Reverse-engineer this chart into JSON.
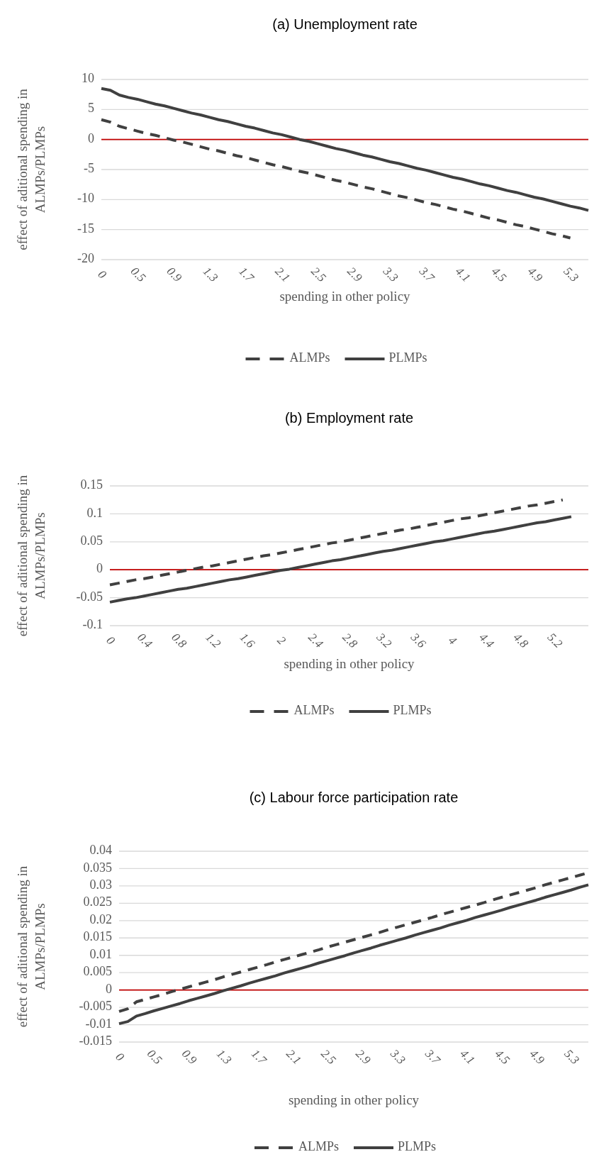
{
  "chart_data": [
    {
      "type": "line",
      "title": "(a)    Unemployment rate",
      "xlabel": "spending in other policy",
      "ylabel": "effect of aditional spending in ALMPs/PLMPs",
      "categories": [
        "0",
        null,
        null,
        null,
        "0.5",
        null,
        null,
        null,
        "0.9",
        null,
        null,
        null,
        "1.3",
        null,
        null,
        null,
        "1.7",
        null,
        null,
        null,
        "2.1",
        null,
        null,
        null,
        "2.5",
        null,
        null,
        null,
        "2.9",
        null,
        null,
        null,
        "3.3",
        null,
        null,
        null,
        "3.7",
        null,
        null,
        null,
        "4.1",
        null,
        null,
        null,
        "4.5",
        null,
        null,
        null,
        "4.9",
        null,
        null,
        null,
        "5.3",
        null,
        null
      ],
      "series": [
        {
          "name": "ALMPs",
          "color": "#404040",
          "line_style": "dashed",
          "values": [
            3.3,
            2.9,
            2.2,
            1.8,
            1.4,
            1.0,
            0.7,
            0.3,
            -0.1,
            -0.4,
            -0.8,
            -1.2,
            -1.6,
            -1.9,
            -2.3,
            -2.7,
            -3.0,
            -3.4,
            -3.8,
            -4.2,
            -4.5,
            -4.9,
            -5.3,
            -5.6,
            -6.0,
            -6.4,
            -6.8,
            -7.1,
            -7.5,
            -7.9,
            -8.2,
            -8.6,
            -9.0,
            -9.4,
            -9.7,
            -10.1,
            -10.5,
            -10.8,
            -11.2,
            -11.6,
            -11.9,
            -12.3,
            -12.7,
            -13.1,
            -13.4,
            -13.8,
            -14.2,
            -14.5,
            -14.9,
            -15.3,
            -15.7,
            -16.0,
            -16.4,
            null,
            null
          ]
        },
        {
          "name": "PLMPs",
          "color": "#404040",
          "line_style": "solid",
          "values": [
            8.5,
            8.2,
            7.4,
            7.0,
            6.7,
            6.3,
            5.9,
            5.6,
            5.2,
            4.8,
            4.4,
            4.1,
            3.7,
            3.3,
            3.0,
            2.6,
            2.2,
            1.9,
            1.5,
            1.1,
            0.8,
            0.4,
            0.0,
            -0.3,
            -0.7,
            -1.1,
            -1.5,
            -1.8,
            -2.2,
            -2.6,
            -2.9,
            -3.3,
            -3.7,
            -4.0,
            -4.4,
            -4.8,
            -5.1,
            -5.5,
            -5.9,
            -6.3,
            -6.6,
            -7.0,
            -7.4,
            -7.7,
            -8.1,
            -8.5,
            -8.8,
            -9.2,
            -9.6,
            -9.9,
            -10.3,
            -10.7,
            -11.1,
            -11.4,
            -11.8
          ]
        }
      ],
      "ylim": [
        -20,
        10
      ],
      "yticks": [
        -20,
        -15,
        -10,
        -5,
        0,
        5,
        10
      ],
      "grid": "y",
      "legend": "bottom",
      "ref_lines": [
        {
          "axis": "y",
          "value": 0,
          "color": "#c00000"
        }
      ]
    },
    {
      "type": "line",
      "title": "(b)    Employment rate",
      "xlabel": "spending in other policy",
      "ylabel": "effect of aditional spending in ALMPs/PLMPs",
      "categories": [
        "0",
        null,
        null,
        null,
        "0.4",
        null,
        null,
        null,
        "0.8",
        null,
        null,
        null,
        "1.2",
        null,
        null,
        null,
        "1.6",
        null,
        null,
        null,
        "2",
        null,
        null,
        null,
        "2.4",
        null,
        null,
        null,
        "2.8",
        null,
        null,
        null,
        "3.2",
        null,
        null,
        null,
        "3.6",
        null,
        null,
        null,
        "4",
        null,
        null,
        null,
        "4.4",
        null,
        null,
        null,
        "4.8",
        null,
        null,
        null,
        "5.2",
        null,
        null,
        null,
        null
      ],
      "series": [
        {
          "name": "ALMPs",
          "color": "#404040",
          "line_style": "dashed",
          "values": [
            -0.027,
            -0.024,
            -0.021,
            -0.018,
            -0.016,
            -0.013,
            -0.01,
            -0.007,
            -0.004,
            -0.001,
            0.002,
            0.005,
            0.007,
            0.01,
            0.013,
            0.016,
            0.019,
            0.022,
            0.025,
            0.027,
            0.03,
            0.033,
            0.036,
            0.039,
            0.042,
            0.045,
            0.048,
            0.05,
            0.053,
            0.056,
            0.059,
            0.062,
            0.065,
            0.068,
            0.071,
            0.073,
            0.076,
            0.079,
            0.082,
            0.085,
            0.088,
            0.091,
            0.093,
            0.096,
            0.099,
            0.102,
            0.105,
            0.108,
            0.111,
            0.114,
            0.116,
            0.119,
            0.122,
            0.125,
            null,
            null,
            null
          ]
        },
        {
          "name": "PLMPs",
          "color": "#404040",
          "line_style": "solid",
          "values": [
            -0.058,
            -0.055,
            -0.052,
            -0.05,
            -0.047,
            -0.044,
            -0.041,
            -0.038,
            -0.035,
            -0.033,
            -0.03,
            -0.027,
            -0.024,
            -0.021,
            -0.018,
            -0.016,
            -0.013,
            -0.01,
            -0.007,
            -0.004,
            -0.001,
            0.001,
            0.004,
            0.007,
            0.01,
            0.013,
            0.016,
            0.018,
            0.021,
            0.024,
            0.027,
            0.03,
            0.033,
            0.035,
            0.038,
            0.041,
            0.044,
            0.047,
            0.05,
            0.052,
            0.055,
            0.058,
            0.061,
            0.064,
            0.067,
            0.069,
            0.072,
            0.075,
            0.078,
            0.081,
            0.084,
            0.086,
            0.089,
            0.092,
            0.095,
            null,
            null
          ]
        }
      ],
      "ylim": [
        -0.1,
        0.15
      ],
      "yticks": [
        -0.1,
        -0.05,
        0,
        0.05,
        0.1,
        0.15
      ],
      "grid": "y",
      "legend": "bottom",
      "ref_lines": [
        {
          "axis": "y",
          "value": 0,
          "color": "#c00000"
        }
      ]
    },
    {
      "type": "line",
      "title": "(c)    Labour force participation rate",
      "xlabel": "spending in other policy",
      "ylabel": "effect of aditional spending in ALMPs/PLMPs",
      "categories": [
        "0",
        null,
        null,
        null,
        "0.5",
        null,
        null,
        null,
        "0.9",
        null,
        null,
        null,
        "1.3",
        null,
        null,
        null,
        "1.7",
        null,
        null,
        null,
        "2.1",
        null,
        null,
        null,
        "2.5",
        null,
        null,
        null,
        "2.9",
        null,
        null,
        null,
        "3.3",
        null,
        null,
        null,
        "3.7",
        null,
        null,
        null,
        "4.1",
        null,
        null,
        null,
        "4.5",
        null,
        null,
        null,
        "4.9",
        null,
        null,
        null,
        "5.3",
        null,
        null
      ],
      "series": [
        {
          "name": "ALMPs",
          "color": "#404040",
          "line_style": "dashed",
          "values": [
            -0.0062,
            -0.0054,
            -0.0034,
            -0.0027,
            -0.002,
            -0.0013,
            -0.0005,
            0.0002,
            0.0009,
            0.0016,
            0.0023,
            0.003,
            0.0038,
            0.0045,
            0.0052,
            0.0059,
            0.0066,
            0.0073,
            0.0081,
            0.0088,
            0.0095,
            0.0102,
            0.0109,
            0.0116,
            0.0124,
            0.0131,
            0.0138,
            0.0145,
            0.0152,
            0.0159,
            0.0166,
            0.0174,
            0.0181,
            0.0188,
            0.0195,
            0.0202,
            0.0209,
            0.0217,
            0.0224,
            0.0231,
            0.0238,
            0.0245,
            0.0252,
            0.026,
            0.0267,
            0.0274,
            0.0281,
            0.0288,
            0.0295,
            0.0303,
            0.031,
            0.0317,
            0.0324,
            0.0331,
            0.0338
          ]
        },
        {
          "name": "PLMPs",
          "color": "#404040",
          "line_style": "solid",
          "values": [
            -0.0097,
            -0.0091,
            -0.0075,
            -0.0068,
            -0.006,
            -0.0053,
            -0.0046,
            -0.0039,
            -0.0031,
            -0.0024,
            -0.0017,
            -0.001,
            -0.0002,
            0.0005,
            0.0012,
            0.002,
            0.0027,
            0.0034,
            0.0041,
            0.0049,
            0.0056,
            0.0063,
            0.007,
            0.0078,
            0.0085,
            0.0092,
            0.0099,
            0.0107,
            0.0114,
            0.0121,
            0.0129,
            0.0136,
            0.0143,
            0.015,
            0.0158,
            0.0165,
            0.0172,
            0.0179,
            0.0187,
            0.0194,
            0.0201,
            0.0209,
            0.0216,
            0.0223,
            0.023,
            0.0238,
            0.0245,
            0.0252,
            0.0259,
            0.0267,
            0.0274,
            0.0281,
            0.0288,
            0.0296,
            0.0303
          ]
        }
      ],
      "ylim": [
        -0.015,
        0.04
      ],
      "yticks": [
        -0.015,
        -0.01,
        -0.005,
        0,
        0.005,
        0.01,
        0.015,
        0.02,
        0.025,
        0.03,
        0.035,
        0.04
      ],
      "grid": "y",
      "legend": "bottom",
      "ref_lines": [
        {
          "axis": "y",
          "value": 0,
          "color": "#c00000"
        }
      ]
    }
  ]
}
